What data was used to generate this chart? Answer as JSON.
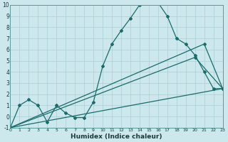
{
  "xlabel": "Humidex (Indice chaleur)",
  "xlim": [
    0,
    23
  ],
  "ylim": [
    -1,
    10
  ],
  "xticks": [
    0,
    1,
    2,
    3,
    4,
    5,
    6,
    7,
    8,
    9,
    10,
    11,
    12,
    13,
    14,
    15,
    16,
    17,
    18,
    19,
    20,
    21,
    22,
    23
  ],
  "yticks": [
    -1,
    0,
    1,
    2,
    3,
    4,
    5,
    6,
    7,
    8,
    9,
    10
  ],
  "bg_color": "#cce8ec",
  "line_color": "#1a6b6b",
  "grid_color": "#aacdd4",
  "line1_x": [
    0,
    1,
    2,
    3,
    4,
    5,
    6,
    7,
    8,
    9,
    10,
    11,
    12,
    13,
    14,
    15,
    16,
    17,
    18,
    19,
    20,
    21,
    22,
    23
  ],
  "line1_y": [
    -1,
    1,
    1.5,
    1.0,
    -0.5,
    1.0,
    0.3,
    -0.1,
    -0.1,
    1.3,
    4.5,
    6.5,
    7.7,
    8.8,
    10.0,
    10.5,
    10.2,
    9.0,
    7.0,
    6.5,
    5.5,
    4.0,
    2.5,
    2.5
  ],
  "line2_x": [
    0,
    23
  ],
  "line2_y": [
    -1,
    2.5
  ],
  "line3_x": [
    0,
    20,
    23
  ],
  "line3_y": [
    -1,
    5.3,
    2.5
  ],
  "line4_x": [
    0,
    21,
    23
  ],
  "line4_y": [
    -1,
    6.5,
    2.5
  ]
}
